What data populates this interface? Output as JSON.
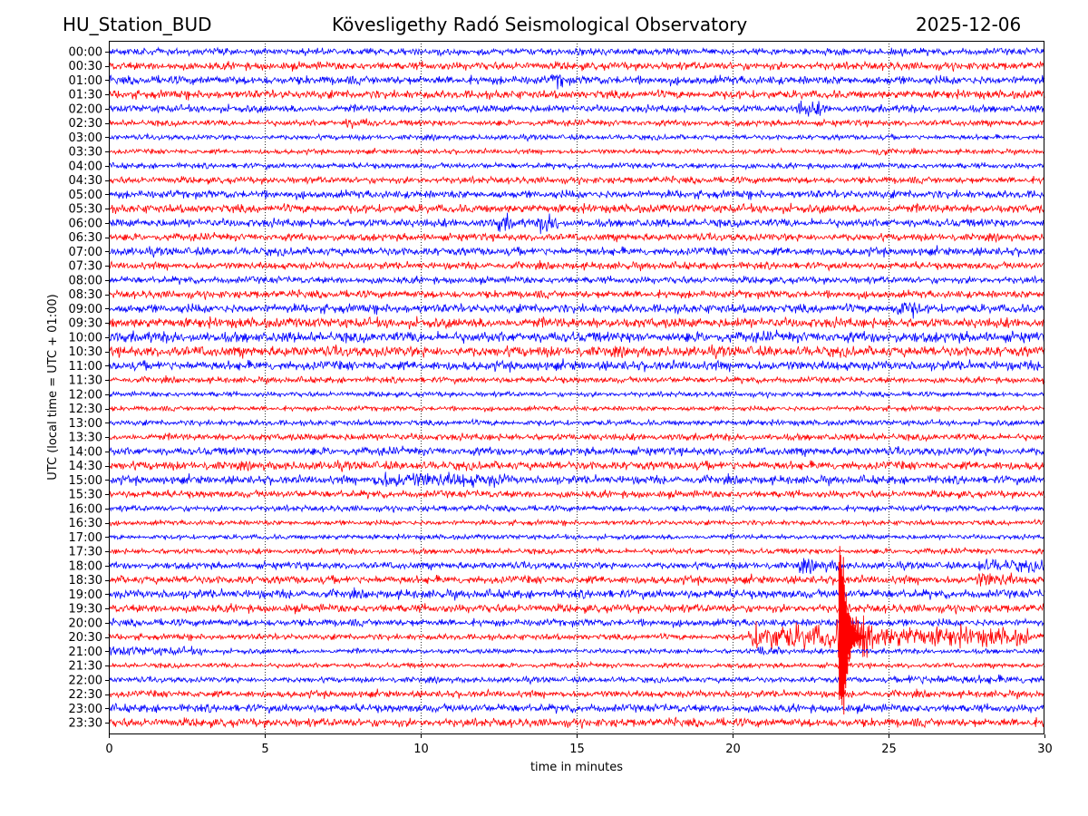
{
  "header": {
    "station": "HU_Station_BUD",
    "observatory": "Kövesligethy Radó Seismological Observatory",
    "date": "2025-12-06"
  },
  "chart_data": {
    "type": "line",
    "subtype": "helicorder",
    "xlabel": "time in minutes",
    "ylabel": "UTC (local time = UTC + 01:00)",
    "xlim": [
      0,
      30
    ],
    "xticks": [
      "0",
      "5",
      "10",
      "15",
      "20",
      "25",
      "30"
    ],
    "grid": "vertical dotted at every 5 minutes",
    "colors": [
      "#0000ff",
      "#ff0000"
    ],
    "rows": [
      "00:00",
      "00:30",
      "01:00",
      "01:30",
      "02:00",
      "02:30",
      "03:00",
      "03:30",
      "04:00",
      "04:30",
      "05:00",
      "05:30",
      "06:00",
      "06:30",
      "07:00",
      "07:30",
      "08:00",
      "08:30",
      "09:00",
      "09:30",
      "10:00",
      "10:30",
      "11:00",
      "11:30",
      "12:00",
      "12:30",
      "13:00",
      "13:30",
      "14:00",
      "14:30",
      "15:00",
      "15:30",
      "16:00",
      "16:30",
      "17:00",
      "17:30",
      "18:00",
      "18:30",
      "19:00",
      "19:30",
      "20:00",
      "20:30",
      "21:00",
      "21:30",
      "22:00",
      "22:30",
      "23:00",
      "23:30"
    ],
    "events": [
      {
        "row": "00:00",
        "start_min": 23.3,
        "end_min": 23.7,
        "relative_amplitude": 2
      },
      {
        "row": "01:00",
        "start_min": 14.2,
        "end_min": 14.7,
        "relative_amplitude": 2.5
      },
      {
        "row": "02:00",
        "start_min": 22.0,
        "end_min": 23.0,
        "relative_amplitude": 2.5
      },
      {
        "row": "02:30",
        "start_min": 7.5,
        "end_min": 8.5,
        "relative_amplitude": 2
      },
      {
        "row": "03:30",
        "start_min": 24.5,
        "end_min": 25.0,
        "relative_amplitude": 2.5
      },
      {
        "row": "06:00",
        "start_min": 12.4,
        "end_min": 13.0,
        "relative_amplitude": 2.5
      },
      {
        "row": "06:00",
        "start_min": 13.8,
        "end_min": 14.4,
        "relative_amplitude": 3
      },
      {
        "row": "09:00",
        "start_min": 25.0,
        "end_min": 26.0,
        "relative_amplitude": 2.5
      },
      {
        "row": "15:00",
        "start_min": 8.5,
        "end_min": 12.8,
        "relative_amplitude": 2.2
      },
      {
        "row": "18:00",
        "start_min": 22.0,
        "end_min": 23.5,
        "relative_amplitude": 2.2
      },
      {
        "row": "18:00",
        "start_min": 27.8,
        "end_min": 30.0,
        "relative_amplitude": 2.2
      },
      {
        "row": "18:30",
        "start_min": 27.8,
        "end_min": 29.0,
        "relative_amplitude": 2.2
      },
      {
        "row": "20:30",
        "start_min": 20.5,
        "end_min": 29.5,
        "relative_amplitude": 5
      },
      {
        "row": "20:30",
        "start_min": 23.35,
        "end_min": 24.5,
        "relative_amplitude": 14
      },
      {
        "row": "21:00",
        "start_min": 0.0,
        "end_min": 3.0,
        "relative_amplitude": 2.2
      },
      {
        "row": "21:00",
        "start_min": 20.8,
        "end_min": 21.6,
        "relative_amplitude": 3
      },
      {
        "row": "22:00",
        "start_min": 25.5,
        "end_min": 30.0,
        "relative_amplitude": 1.8
      }
    ]
  }
}
